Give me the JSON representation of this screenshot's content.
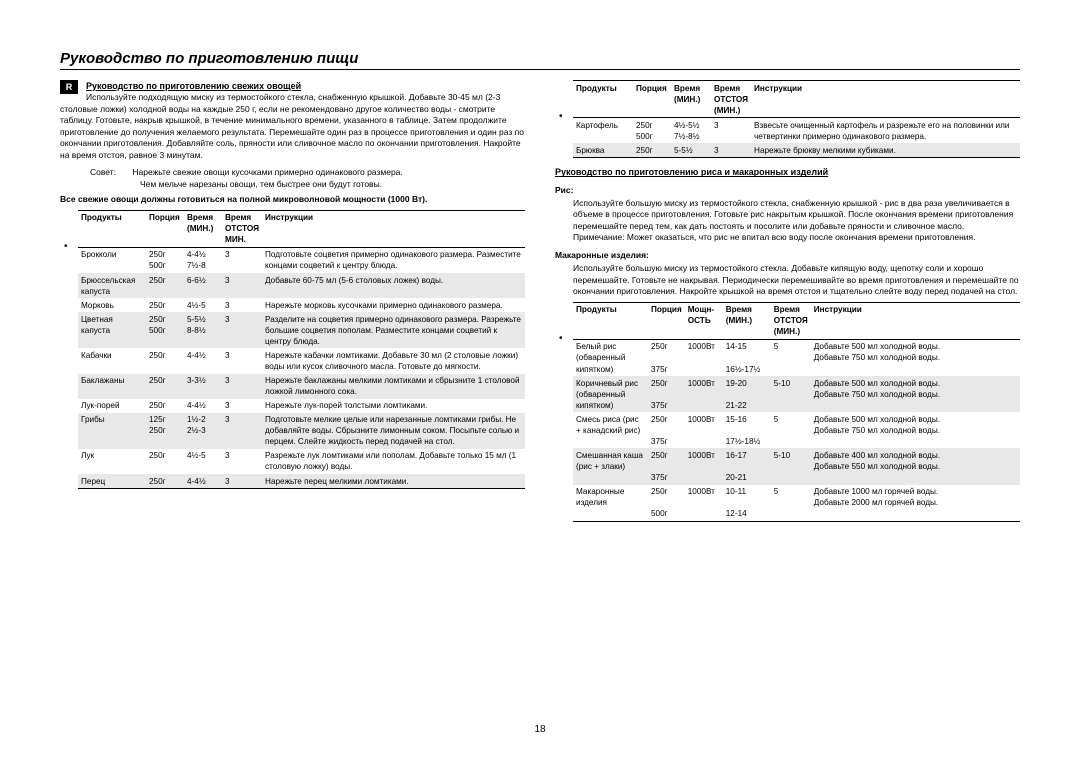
{
  "page_title": "Руководство по приготовлению пищи",
  "badge": "R",
  "page_number": "18",
  "left": {
    "section_title": "Руководство по приготовлению свежих овощей",
    "intro": "Используйте подходящую миску из термостойкого стекла, снабженную крышкой. Добавьте 30-45 мл (2-3 столовые ложки) холодной воды на каждые 250 г, если не рекомендовано другое количество воды - смотрите таблицу. Готовьте, накрыв крышкой, в течение минимального времени, указанного в таблице. Затем продолжите приготовление до получения желаемого результата. Перемешайте один раз в процессе приготовления и один раз по окончании приготовления. Добавляйте соль, пряности или сливочное масло по окончании приготовления. Накройте на время отстоя, равное 3 минутам.",
    "tip_label": "Совет:",
    "tip_text1": "Нарежьте свежие овощи кусочками примерно одинакового размера.",
    "tip_text2": "Чем мельче нарезаны овощи, тем быстрее они будут готовы.",
    "bold_note": "Все свежие овощи должны готовиться на полной микроволновой мощности (1000 Вт).",
    "headers": {
      "c1": "Продукты",
      "c2": "Порция",
      "c3": "Время",
      "c3s": "(МИН.)",
      "c4": "Время",
      "c4s": "ОТСТОЯ",
      "c4s2": "МИН.",
      "c5": "Инструкции"
    },
    "rows": [
      {
        "shade": false,
        "p": "Брокколи",
        "por": "250г\n500г",
        "t1": "4-4½\n7½-8",
        "t2": "3",
        "instr": "Подготовьте соцветия примерно одинакового размера. Разместите концами соцветий к центру блюда."
      },
      {
        "shade": true,
        "p": "Брюссельская капуста",
        "por": "250г",
        "t1": "6-6½",
        "t2": "3",
        "instr": "Добавьте 60-75 мл (5-6 столовых ложек) воды."
      },
      {
        "shade": false,
        "p": "Морковь",
        "por": "250г",
        "t1": "4½-5",
        "t2": "3",
        "instr": "Нарежьте морковь кусочками примерно одинакового размера."
      },
      {
        "shade": true,
        "p": "Цветная капуста",
        "por": "250г\n500г",
        "t1": "5-5½\n8-8½",
        "t2": "3",
        "instr": "Разделите на соцветия примерно одинакового размера. Разрежьте большие соцветия пополам. Разместите концами соцветий к центру блюда."
      },
      {
        "shade": false,
        "p": "Кабачки",
        "por": "250г",
        "t1": "4-4½",
        "t2": "3",
        "instr": "Нарежьте кабачки ломтиками. Добавьте 30 мл (2 столовые ложки) воды или кусок сливочного масла. Готовьте до мягкости."
      },
      {
        "shade": true,
        "p": "Баклажаны",
        "por": "250г",
        "t1": "3-3½",
        "t2": "3",
        "instr": "Нарежьте баклажаны мелкими ломтиками и сбрызните 1 столовой ложкой лимонного сока."
      },
      {
        "shade": false,
        "p": "Лук-порей",
        "por": "250г",
        "t1": "4-4½",
        "t2": "3",
        "instr": "Нарежьте лук-порей толстыми ломтиками."
      },
      {
        "shade": true,
        "p": "Грибы",
        "por": "125г\n250г",
        "t1": "1½-2\n2½-3",
        "t2": "3",
        "instr": "Подготовьте мелкие целые или нарезанные ломтиками грибы. Не добавляйте воды. Сбрызните лимонным соком. Посыпьте солью и перцем. Слейте жидкость перед подачей на стол."
      },
      {
        "shade": false,
        "p": "Лук",
        "por": "250г",
        "t1": "4½-5",
        "t2": "3",
        "instr": "Разрежьте лук ломтиками или пополам. Добавьте только 15 мл (1 столовую ложку) воды."
      },
      {
        "shade": true,
        "p": "Перец",
        "por": "250г",
        "t1": "4-4½",
        "t2": "3",
        "instr": "Нарежьте перец мелкими ломтиками."
      }
    ]
  },
  "right": {
    "headers1": {
      "c1": "Продукты",
      "c2": "Порция",
      "c3": "Время",
      "c3s": "(МИН.)",
      "c4": "Время",
      "c4s": "ОТСТОЯ",
      "c4s2": "(МИН.)",
      "c5": "Инструкции"
    },
    "rows1": [
      {
        "shade": false,
        "p": "Картофель",
        "por": "250г\n500г",
        "t1": "4½-5½\n7½-8½",
        "t2": "3",
        "instr": "Взвесьте очищенный картофель и разрежьте его на половинки или четвертинки примерно одинакового размера."
      },
      {
        "shade": true,
        "p": "Брюква",
        "por": "250г",
        "t1": "5-5½",
        "t2": "3",
        "instr": "Нарежьте брюкву мелкими кубиками."
      }
    ],
    "section_title": "Руководство по приготовлению риса и макаронных изделий",
    "rice_label": "Рис:",
    "rice_text": "Используйте большую миску из термостойкого стекла, снабженную крышкой - рис в два раза увеличивается в объеме в процессе приготовления. Готовьте рис накрытым крышкой. После окончания времени приготовления перемешайте перед тем, как дать постоять и посолите или добавьте пряности и сливочное масло.",
    "rice_note": "Примечание: Может оказаться, что рис не впитал всю воду после окончания времени приготовления.",
    "pasta_label": "Макаронные изделия:",
    "pasta_text": "Используйте большую миску из термостойкого стекла. Добавьте кипящую воду, щепотку соли и хорошо перемешайте. Готовьте не накрывая. Периодически перемешивайте во время приготовления и перемешайте по окончании приготовления. Накройте крышкой на время отстоя и тщательно слейте воду перед подачей на стол.",
    "headers2": {
      "c1": "Продукты",
      "c2": "Порция",
      "c3": "Мощн-",
      "c3s": "ОСТЬ",
      "c4": "Время",
      "c4s": "(МИН.)",
      "c5": "Время",
      "c5s": "ОТСТОЯ",
      "c5s2": "(МИН.)",
      "c6": "Инструкции"
    },
    "rows2": [
      {
        "shade": false,
        "p": "Белый рис (обваренный кипятком)",
        "por": "250г\n\n375г",
        "pw": "1000Вт",
        "t1": "14-15\n\n16½-17½",
        "t2": "5",
        "instr": "Добавьте 500 мл холодной воды.\nДобавьте 750 мл холодной воды."
      },
      {
        "shade": true,
        "p": "Коричневый рис (обваренный кипятком)",
        "por": "250г\n\n375г",
        "pw": "1000Вт",
        "t1": "19-20\n\n21-22",
        "t2": "5-10",
        "instr": "Добавьте 500 мл холодной воды.\nДобавьте 750 мл холодной воды."
      },
      {
        "shade": false,
        "p": "Смесь риса (рис + канадский рис)",
        "por": "250г\n\n375г",
        "pw": "1000Вт",
        "t1": "15-16\n\n17½-18½",
        "t2": "5",
        "instr": "Добавьте 500 мл холодной воды.\nДобавьте 750 мл холодной воды."
      },
      {
        "shade": true,
        "p": "Смешанная каша (рис + злаки)",
        "por": "250г\n\n375г",
        "pw": "1000Вт",
        "t1": "16-17\n\n20-21",
        "t2": "5-10",
        "instr": "Добавьте 400 мл холодной воды.\nДобавьте 550 мл холодной воды."
      },
      {
        "shade": false,
        "p": "Макаронные изделия",
        "por": "250г\n\n500г",
        "pw": "1000Вт",
        "t1": "10-11\n\n12-14",
        "t2": "5",
        "instr": "Добавьте 1000 мл горячей воды.\nДобавьте 2000 мл горячей воды."
      }
    ]
  }
}
